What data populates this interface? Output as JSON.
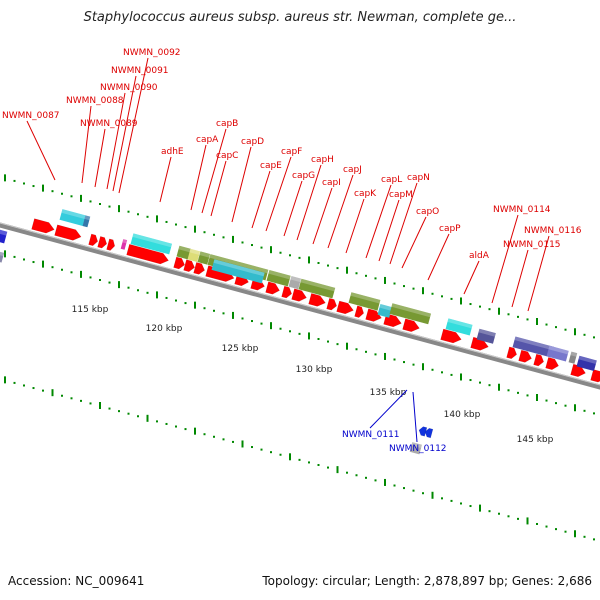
{
  "title": "Staphylococcus aureus subsp. aureus str. Newman, complete ge...",
  "footer": {
    "accession": "Accession: NC_009641",
    "summary": "Topology: circular; Length: 2,878,897 bp; Genes: 2,686"
  },
  "colors": {
    "forward_arrow": "#ff0000",
    "label_red": "#dd0000",
    "label_blue": "#0000cc",
    "tick_green": "#008800",
    "backbone": "#888888",
    "cyan": "#33ccdd",
    "olive": "#779933",
    "purple": "#5555aa"
  },
  "scale_labels": [
    "115 kbp",
    "120 kbp",
    "125 kbp",
    "130 kbp",
    "135 kbp",
    "140 kbp",
    "145 kbp"
  ],
  "gene_labels_red": [
    "NWMN_0087",
    "NWMN_0088",
    "NWMN_0089",
    "NWMN_0090",
    "NWMN_0091",
    "NWMN_0092",
    "adhE",
    "capA",
    "capB",
    "capC",
    "capD",
    "capE",
    "capF",
    "capG",
    "capH",
    "capI",
    "capJ",
    "capK",
    "capL",
    "capM",
    "capN",
    "capO",
    "capP",
    "aldA",
    "NWMN_0114",
    "NWMN_0115",
    "NWMN_0116"
  ],
  "gene_labels_blue": [
    "NWMN_0111",
    "NWMN_0112"
  ]
}
